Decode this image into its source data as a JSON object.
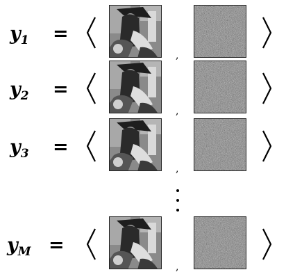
{
  "rows": [
    {
      "var": "y",
      "sub": "1",
      "eq": "=",
      "sep": ","
    },
    {
      "var": "y",
      "sub": "2",
      "eq": "=",
      "sep": ","
    },
    {
      "var": "y",
      "sub": "3",
      "eq": "=",
      "sep": ","
    },
    {
      "var": "y",
      "sub": "M",
      "eq": "=",
      "sep": ","
    }
  ],
  "ellipsis": "vertical-dots"
}
